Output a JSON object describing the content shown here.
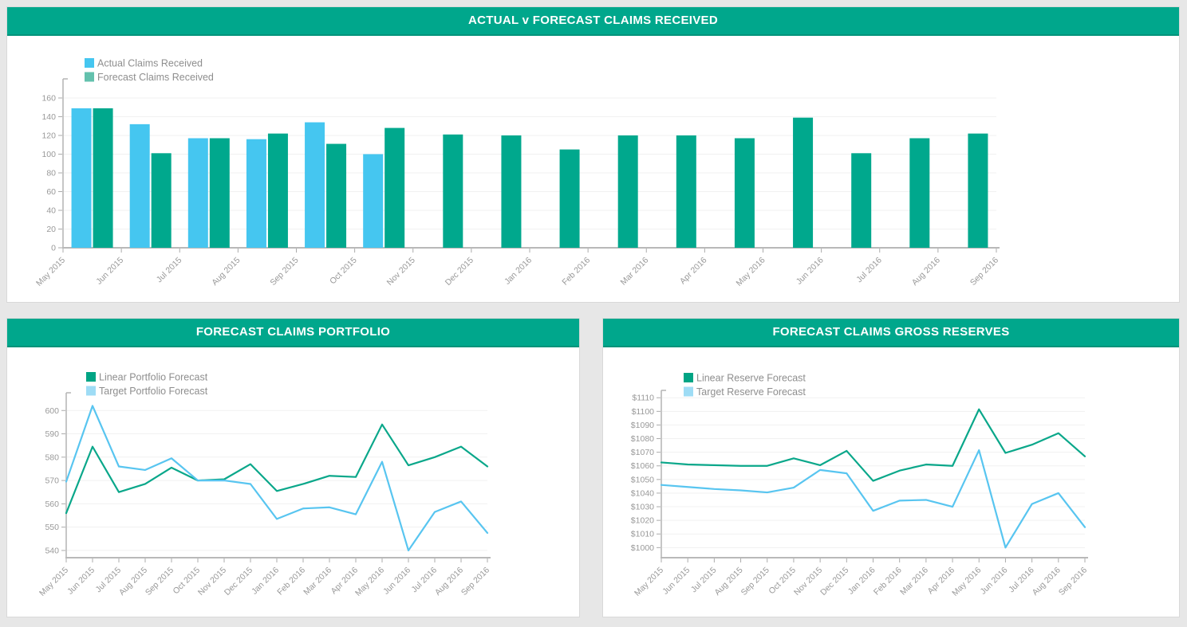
{
  "accent_color": "#00a78c",
  "chart_data": [
    {
      "type": "bar",
      "title": "ACTUAL v FORECAST CLAIMS RECEIVED",
      "categories": [
        "May 2015",
        "Jun 2015",
        "Jul 2015",
        "Aug 2015",
        "Sep 2015",
        "Oct 2015",
        "Nov 2015",
        "Dec 2015",
        "Jan 2016",
        "Feb 2016",
        "Mar 2016",
        "Apr 2016",
        "May 2016",
        "Jun 2016",
        "Jul 2016",
        "Aug 2016",
        "Sep 2016"
      ],
      "series": [
        {
          "name": "Actual Claims Received",
          "color": "#45c6f0",
          "legend_color": "#45c6f0",
          "values": [
            149,
            132,
            117,
            116,
            134,
            100,
            null,
            null,
            null,
            null,
            null,
            null,
            null,
            null,
            null,
            null,
            null
          ]
        },
        {
          "name": "Forecast Claims Received",
          "color": "#00a88d",
          "legend_color": "#63c1ad",
          "values": [
            149,
            101,
            117,
            122,
            111,
            128,
            121,
            120,
            105,
            120,
            120,
            117,
            139,
            101,
            117,
            122,
            null
          ]
        }
      ],
      "yticks": [
        0,
        20,
        40,
        60,
        80,
        100,
        120,
        140,
        160
      ],
      "ytick_prefix": "",
      "ylim": [
        0,
        180.4
      ],
      "grid": true,
      "legend_position": "top-left"
    },
    {
      "type": "line",
      "title": "FORECAST CLAIMS PORTFOLIO",
      "categories": [
        "May 2015",
        "Jun 2015",
        "Jul 2015",
        "Aug 2015",
        "Sep 2015",
        "Oct 2015",
        "Nov 2015",
        "Dec 2015",
        "Jan 2016",
        "Feb 2016",
        "Mar 2016",
        "Apr 2016",
        "May 2016",
        "Jun 2016",
        "Jul 2016",
        "Aug 2016",
        "Sep 2016"
      ],
      "series": [
        {
          "name": "Linear Portfolio Forecast",
          "color": "#0aa78a",
          "legend_color": "#00a484",
          "values": [
            556,
            584.5,
            565,
            568.5,
            575.5,
            570,
            570.5,
            577,
            565.5,
            568.5,
            572,
            571.5,
            594,
            576.5,
            580,
            584.5,
            576
          ]
        },
        {
          "name": "Target Portfolio Forecast",
          "color": "#58c5f0",
          "legend_color": "#9edcf5",
          "values": [
            569.5,
            602,
            576,
            574.5,
            579.5,
            570,
            570,
            568.5,
            553.5,
            558,
            558.5,
            555.5,
            578,
            540,
            556.5,
            561,
            547.5
          ]
        }
      ],
      "yticks": [
        540,
        550,
        560,
        570,
        580,
        590,
        600
      ],
      "ytick_prefix": "",
      "ylim": [
        536.9,
        607.6
      ],
      "grid": true,
      "legend_position": "top-left"
    },
    {
      "type": "line",
      "title": "FORECAST CLAIMS GROSS RESERVES",
      "categories": [
        "May 2015",
        "Jun 2015",
        "Jul 2015",
        "Aug 2015",
        "Sep 2015",
        "Oct 2015",
        "Nov 2015",
        "Dec 2015",
        "Jan 2016",
        "Feb 2016",
        "Mar 2016",
        "Apr 2016",
        "May 2016",
        "Jun 2016",
        "Jul 2016",
        "Aug 2016",
        "Sep 2016"
      ],
      "series": [
        {
          "name": "Linear Reserve Forecast",
          "color": "#0aa78a",
          "legend_color": "#00a484",
          "values": [
            1062.5,
            1061,
            1060.5,
            1060,
            1060,
            1065.5,
            1060.5,
            1071,
            1049,
            1056.5,
            1061,
            1060,
            1101.5,
            1069.5,
            1075.5,
            1084,
            1067
          ]
        },
        {
          "name": "Target Reserve Forecast",
          "color": "#58c5f0",
          "legend_color": "#9edcf5",
          "values": [
            1046,
            1044.5,
            1043,
            1042,
            1040.5,
            1044,
            1057,
            1054.5,
            1027,
            1034.5,
            1035,
            1030,
            1071.5,
            1000,
            1032,
            1040,
            1015
          ]
        }
      ],
      "yticks": [
        1000,
        1010,
        1020,
        1030,
        1040,
        1050,
        1060,
        1070,
        1080,
        1090,
        1100,
        1110
      ],
      "ytick_prefix": "$",
      "ylim": [
        992.6,
        1115.4
      ],
      "grid": true,
      "legend_position": "top-left"
    }
  ]
}
